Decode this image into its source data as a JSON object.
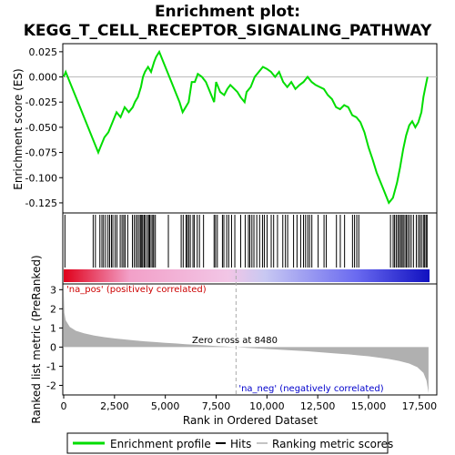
{
  "chart_data": {
    "type": "line",
    "title_line1": "Enrichment plot:",
    "title_line2": "KEGG_T_CELL_RECEPTOR_SIGNALING_PATHWAY",
    "xlabel": "Rank in Ordered Dataset",
    "ylabel_top": "Enrichment score (ES)",
    "ylabel_bottom": "Ranked list metric (PreRanked)",
    "x_ticks": [
      0,
      2500,
      5000,
      7500,
      10000,
      12500,
      15000,
      17500
    ],
    "x_tick_labels": [
      "0",
      "2,500",
      "5,000",
      "7,500",
      "10,000",
      "12,500",
      "15,000",
      "17,500"
    ],
    "xlim": [
      0,
      18000
    ],
    "es_yticks": [
      0.025,
      0.0,
      -0.025,
      -0.05,
      -0.075,
      -0.1,
      -0.125
    ],
    "es_ytick_labels": [
      "0.025",
      "0.000",
      "-0.025",
      "-0.050",
      "-0.075",
      "-0.100",
      "-0.125"
    ],
    "es_ylim": [
      -0.135,
      0.033
    ],
    "metric_yticks": [
      3,
      2,
      1,
      0,
      -1,
      -2
    ],
    "metric_ytick_labels": [
      "3",
      "2",
      "1",
      "0",
      "-1",
      "-2"
    ],
    "metric_ylim": [
      -2.5,
      3.3
    ],
    "zero_cross_label": "Zero cross at 8480",
    "zero_cross_x": 8480,
    "pos_label": "'na_pos' (positively correlated)",
    "neg_label": "'na_neg' (negatively correlated)",
    "legend": [
      "Enrichment profile",
      "Hits",
      "Ranking metric scores"
    ],
    "colors": {
      "enrichment": "#00dd00",
      "hits": "#000000",
      "metric_fill": "#b0b0b0",
      "pos_label": "#cc0000",
      "neg_label": "#0000cc",
      "zero_line": "#aaaaaa"
    },
    "es_curve": [
      [
        0,
        0.0
      ],
      [
        100,
        0.005
      ],
      [
        400,
        -0.01
      ],
      [
        800,
        -0.03
      ],
      [
        1200,
        -0.05
      ],
      [
        1500,
        -0.065
      ],
      [
        1700,
        -0.075
      ],
      [
        1800,
        -0.07
      ],
      [
        2000,
        -0.06
      ],
      [
        2200,
        -0.055
      ],
      [
        2400,
        -0.045
      ],
      [
        2600,
        -0.035
      ],
      [
        2800,
        -0.04
      ],
      [
        3000,
        -0.03
      ],
      [
        3200,
        -0.035
      ],
      [
        3400,
        -0.03
      ],
      [
        3500,
        -0.025
      ],
      [
        3650,
        -0.02
      ],
      [
        3800,
        -0.01
      ],
      [
        3900,
        0.0
      ],
      [
        4000,
        0.005
      ],
      [
        4150,
        0.01
      ],
      [
        4300,
        0.005
      ],
      [
        4450,
        0.015
      ],
      [
        4550,
        0.02
      ],
      [
        4700,
        0.025
      ],
      [
        4900,
        0.015
      ],
      [
        5100,
        0.005
      ],
      [
        5300,
        -0.005
      ],
      [
        5500,
        -0.015
      ],
      [
        5700,
        -0.025
      ],
      [
        5850,
        -0.035
      ],
      [
        6000,
        -0.03
      ],
      [
        6150,
        -0.025
      ],
      [
        6300,
        -0.005
      ],
      [
        6450,
        -0.005
      ],
      [
        6600,
        0.003
      ],
      [
        6800,
        0.0
      ],
      [
        7000,
        -0.005
      ],
      [
        7200,
        -0.015
      ],
      [
        7400,
        -0.025
      ],
      [
        7500,
        -0.005
      ],
      [
        7700,
        -0.015
      ],
      [
        7900,
        -0.018
      ],
      [
        8050,
        -0.012
      ],
      [
        8200,
        -0.008
      ],
      [
        8400,
        -0.012
      ],
      [
        8550,
        -0.015
      ],
      [
        8700,
        -0.02
      ],
      [
        8900,
        -0.025
      ],
      [
        9000,
        -0.015
      ],
      [
        9200,
        -0.01
      ],
      [
        9400,
        0.0
      ],
      [
        9600,
        0.005
      ],
      [
        9800,
        0.01
      ],
      [
        10000,
        0.008
      ],
      [
        10200,
        0.005
      ],
      [
        10400,
        0.0
      ],
      [
        10600,
        0.005
      ],
      [
        10800,
        -0.005
      ],
      [
        11000,
        -0.01
      ],
      [
        11200,
        -0.005
      ],
      [
        11400,
        -0.012
      ],
      [
        11600,
        -0.008
      ],
      [
        11800,
        -0.005
      ],
      [
        12000,
        0.0
      ],
      [
        12200,
        -0.005
      ],
      [
        12400,
        -0.008
      ],
      [
        12600,
        -0.01
      ],
      [
        12800,
        -0.012
      ],
      [
        13000,
        -0.018
      ],
      [
        13200,
        -0.022
      ],
      [
        13400,
        -0.03
      ],
      [
        13600,
        -0.032
      ],
      [
        13800,
        -0.028
      ],
      [
        14000,
        -0.03
      ],
      [
        14200,
        -0.038
      ],
      [
        14400,
        -0.04
      ],
      [
        14600,
        -0.045
      ],
      [
        14800,
        -0.055
      ],
      [
        15000,
        -0.07
      ],
      [
        15200,
        -0.082
      ],
      [
        15400,
        -0.095
      ],
      [
        15600,
        -0.105
      ],
      [
        15800,
        -0.115
      ],
      [
        16000,
        -0.125
      ],
      [
        16200,
        -0.12
      ],
      [
        16400,
        -0.105
      ],
      [
        16550,
        -0.09
      ],
      [
        16700,
        -0.072
      ],
      [
        16850,
        -0.058
      ],
      [
        17000,
        -0.048
      ],
      [
        17150,
        -0.044
      ],
      [
        17300,
        -0.05
      ],
      [
        17450,
        -0.045
      ],
      [
        17600,
        -0.035
      ],
      [
        17700,
        -0.02
      ],
      [
        17800,
        -0.01
      ],
      [
        17900,
        0.0
      ]
    ],
    "hit_ranks": [
      60,
      1450,
      1560,
      1780,
      1880,
      1960,
      2060,
      2180,
      2260,
      2350,
      2420,
      2530,
      2620,
      2780,
      2870,
      2950,
      3020,
      3150,
      3380,
      3470,
      3560,
      3640,
      3720,
      3790,
      3840,
      3890,
      3960,
      4020,
      4110,
      4180,
      4230,
      4300,
      4380,
      4430,
      4510,
      5150,
      5780,
      5880,
      6020,
      6080,
      6150,
      6230,
      6360,
      6430,
      6570,
      6680,
      6880,
      7400,
      7470,
      7560,
      7810,
      7880,
      8020,
      8120,
      8260,
      8420,
      8710,
      8930,
      9090,
      9160,
      9260,
      9360,
      9500,
      9640,
      9780,
      9870,
      10010,
      10210,
      10330,
      10520,
      10780,
      10910,
      11020,
      11310,
      11480,
      11660,
      11800,
      11900,
      12010,
      12100,
      12210,
      12520,
      12810,
      12920,
      13420,
      13610,
      13820,
      14210,
      14310,
      14420,
      14520,
      16080,
      16210,
      16280,
      16360,
      16440,
      16510,
      16580,
      16650,
      16710,
      16790,
      16860,
      16930,
      17010,
      17100,
      17210,
      17350,
      17450,
      17530,
      17610,
      17700,
      17760,
      17830,
      17880
    ],
    "metric_points": [
      [
        0,
        2.9
      ],
      [
        30,
        1.8
      ],
      [
        100,
        1.4
      ],
      [
        300,
        1.05
      ],
      [
        600,
        0.85
      ],
      [
        1000,
        0.72
      ],
      [
        1500,
        0.6
      ],
      [
        2000,
        0.52
      ],
      [
        2500,
        0.45
      ],
      [
        3000,
        0.4
      ],
      [
        3500,
        0.35
      ],
      [
        4000,
        0.3
      ],
      [
        4500,
        0.26
      ],
      [
        5000,
        0.22
      ],
      [
        5500,
        0.19
      ],
      [
        6000,
        0.15
      ],
      [
        6500,
        0.12
      ],
      [
        7000,
        0.09
      ],
      [
        7500,
        0.06
      ],
      [
        8000,
        0.03
      ],
      [
        8480,
        0.0
      ],
      [
        9000,
        -0.04
      ],
      [
        9500,
        -0.07
      ],
      [
        10000,
        -0.1
      ],
      [
        10500,
        -0.13
      ],
      [
        11000,
        -0.16
      ],
      [
        11500,
        -0.19
      ],
      [
        12000,
        -0.22
      ],
      [
        12500,
        -0.26
      ],
      [
        13000,
        -0.3
      ],
      [
        13500,
        -0.34
      ],
      [
        14000,
        -0.38
      ],
      [
        14500,
        -0.43
      ],
      [
        15000,
        -0.48
      ],
      [
        15500,
        -0.55
      ],
      [
        16000,
        -0.62
      ],
      [
        16500,
        -0.72
      ],
      [
        17000,
        -0.86
      ],
      [
        17400,
        -1.05
      ],
      [
        17700,
        -1.35
      ],
      [
        17850,
        -1.75
      ],
      [
        17950,
        -2.4
      ]
    ]
  }
}
